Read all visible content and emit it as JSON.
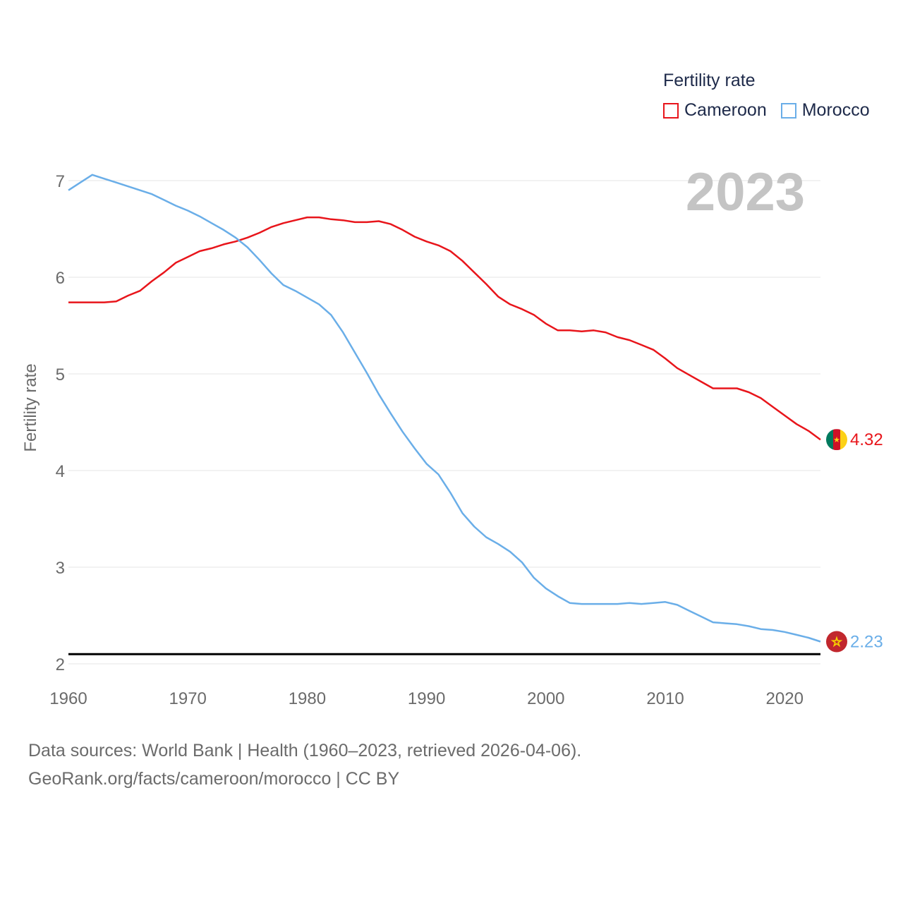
{
  "legend": {
    "title": "Fertility rate"
  },
  "footer": {
    "line1": "Data sources: World Bank | Health (1960–2023, retrieved 2026-04-06).",
    "line2": "GeoRank.org/facts/cameroon/morocco | CC BY"
  },
  "chart_data": {
    "type": "line",
    "ylabel": "Fertility rate",
    "xlabel": "",
    "year_label": "2023",
    "xlim": [
      1960,
      2023
    ],
    "ylim": [
      2,
      7.2
    ],
    "xticks": [
      1960,
      1970,
      1980,
      1990,
      2000,
      2010,
      2020
    ],
    "yticks": [
      2,
      3,
      4,
      5,
      6,
      7
    ],
    "reference_line": 2.1,
    "x": [
      1960,
      1961,
      1962,
      1963,
      1964,
      1965,
      1966,
      1967,
      1968,
      1969,
      1970,
      1971,
      1972,
      1973,
      1974,
      1975,
      1976,
      1977,
      1978,
      1979,
      1980,
      1981,
      1982,
      1983,
      1984,
      1985,
      1986,
      1987,
      1988,
      1989,
      1990,
      1991,
      1992,
      1993,
      1994,
      1995,
      1996,
      1997,
      1998,
      1999,
      2000,
      2001,
      2002,
      2003,
      2004,
      2005,
      2006,
      2007,
      2008,
      2009,
      2010,
      2011,
      2012,
      2013,
      2014,
      2015,
      2016,
      2017,
      2018,
      2019,
      2020,
      2021,
      2022,
      2023
    ],
    "series": [
      {
        "name": "Cameroon",
        "color": "#e8151b",
        "end_label": "4.32",
        "values": [
          5.74,
          5.74,
          5.74,
          5.74,
          5.75,
          5.81,
          5.86,
          5.96,
          6.05,
          6.15,
          6.21,
          6.27,
          6.3,
          6.34,
          6.37,
          6.41,
          6.46,
          6.52,
          6.56,
          6.59,
          6.62,
          6.62,
          6.6,
          6.59,
          6.57,
          6.57,
          6.58,
          6.55,
          6.49,
          6.42,
          6.37,
          6.33,
          6.27,
          6.17,
          6.05,
          5.93,
          5.8,
          5.72,
          5.67,
          5.61,
          5.52,
          5.45,
          5.45,
          5.44,
          5.45,
          5.43,
          5.38,
          5.35,
          5.3,
          5.25,
          5.16,
          5.06,
          4.99,
          4.92,
          4.85,
          4.85,
          4.85,
          4.81,
          4.75,
          4.66,
          4.57,
          4.48,
          4.41,
          4.32
        ]
      },
      {
        "name": "Morocco",
        "color": "#6aaee8",
        "end_label": "2.23",
        "values": [
          6.9,
          6.98,
          7.06,
          7.02,
          6.98,
          6.94,
          6.9,
          6.86,
          6.8,
          6.74,
          6.69,
          6.63,
          6.56,
          6.49,
          6.41,
          6.31,
          6.18,
          6.04,
          5.92,
          5.86,
          5.79,
          5.72,
          5.61,
          5.43,
          5.22,
          5.01,
          4.79,
          4.59,
          4.4,
          4.23,
          4.07,
          3.96,
          3.77,
          3.56,
          3.42,
          3.31,
          3.24,
          3.16,
          3.05,
          2.89,
          2.78,
          2.7,
          2.63,
          2.62,
          2.62,
          2.62,
          2.62,
          2.63,
          2.62,
          2.63,
          2.64,
          2.61,
          2.55,
          2.49,
          2.43,
          2.42,
          2.41,
          2.39,
          2.36,
          2.35,
          2.33,
          2.3,
          2.27,
          2.23
        ]
      }
    ]
  }
}
